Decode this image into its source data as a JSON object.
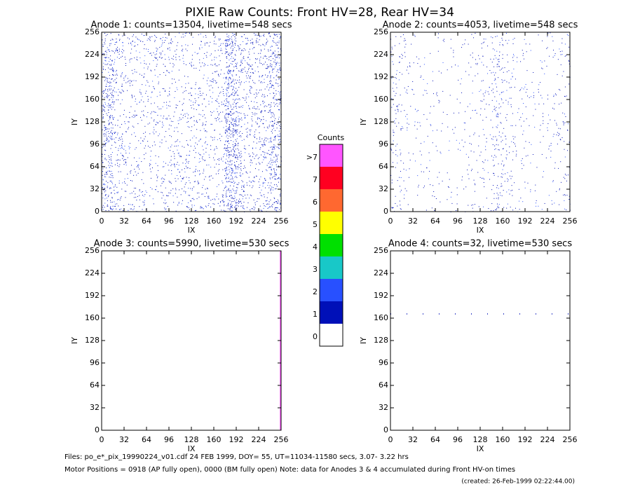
{
  "title": "PIXIE Raw Counts:  Front HV=28, Rear HV=34",
  "chart_data": [
    {
      "type": "heatmap",
      "title": "Anode 1: counts=13504, livetime=548 secs",
      "xlabel": "IX",
      "ylabel": "IY",
      "xlim": [
        0,
        256
      ],
      "ylim": [
        0,
        256
      ],
      "xticks": [
        0,
        32,
        64,
        96,
        128,
        160,
        192,
        224,
        256
      ],
      "yticks": [
        0,
        32,
        64,
        96,
        128,
        160,
        192,
        224,
        256
      ],
      "color": "#0010b8",
      "column_counts": [
        1400,
        700,
        500,
        450,
        450,
        450,
        500,
        500,
        500,
        500,
        600,
        2100,
        900,
        700,
        900,
        1400
      ]
    },
    {
      "type": "heatmap",
      "title": "Anode 2: counts=4053, livetime=548 secs",
      "xlabel": "IX",
      "ylabel": "IY",
      "xlim": [
        0,
        256
      ],
      "ylim": [
        0,
        256
      ],
      "xticks": [
        0,
        32,
        64,
        96,
        128,
        160,
        192,
        224,
        256
      ],
      "yticks": [
        0,
        32,
        64,
        96,
        128,
        160,
        192,
        224,
        256
      ],
      "color": "#0010b8",
      "column_counts": [
        400,
        200,
        150,
        130,
        120,
        130,
        150,
        200,
        250,
        600,
        350,
        200,
        150,
        150,
        200,
        300
      ]
    },
    {
      "type": "heatmap",
      "title": "Anode 3: counts=5990, livetime=530 secs",
      "xlabel": "IX",
      "ylabel": "IY",
      "xlim": [
        0,
        256
      ],
      "ylim": [
        0,
        256
      ],
      "xticks": [
        0,
        32,
        64,
        96,
        128,
        160,
        192,
        224,
        256
      ],
      "yticks": [
        0,
        32,
        64,
        96,
        128,
        160,
        192,
        224,
        256
      ],
      "color": "#ff55ff",
      "stripe": {
        "axis": "x",
        "at": 255
      }
    },
    {
      "type": "heatmap",
      "title": "Anode 4: counts=32, livetime=530 secs",
      "xlabel": "IX",
      "ylabel": "IY",
      "xlim": [
        0,
        256
      ],
      "ylim": [
        0,
        256
      ],
      "xticks": [
        0,
        32,
        64,
        96,
        128,
        160,
        192,
        224,
        256
      ],
      "yticks": [
        0,
        32,
        64,
        96,
        128,
        160,
        192,
        224,
        256
      ],
      "color": "#0010b8",
      "stripe": {
        "axis": "y",
        "at": 166
      }
    }
  ],
  "colorbar": {
    "title": "Counts",
    "labels": [
      ">7",
      "7",
      "6",
      "5",
      "4",
      "3",
      "2",
      "1",
      "0"
    ],
    "colors": [
      "#ff55ff",
      "#ff0020",
      "#ff6830",
      "#ffff00",
      "#00e000",
      "#18c8c8",
      "#2850ff",
      "#0010b8",
      "#ffffff"
    ]
  },
  "footer": [
    "Files: po_e*_pix_19990224_v01.cdf    24 FEB 1999, DOY= 55, UT=11034-11580 secs,  3.07- 3.22 hrs",
    "Motor Positions = 0918 (AP fully open), 0000 (BM fully open)    Note: data for Anodes 3 & 4 accumulated during Front HV-on times",
    "(created: 26-Feb-1999 02:22:44.00)"
  ]
}
